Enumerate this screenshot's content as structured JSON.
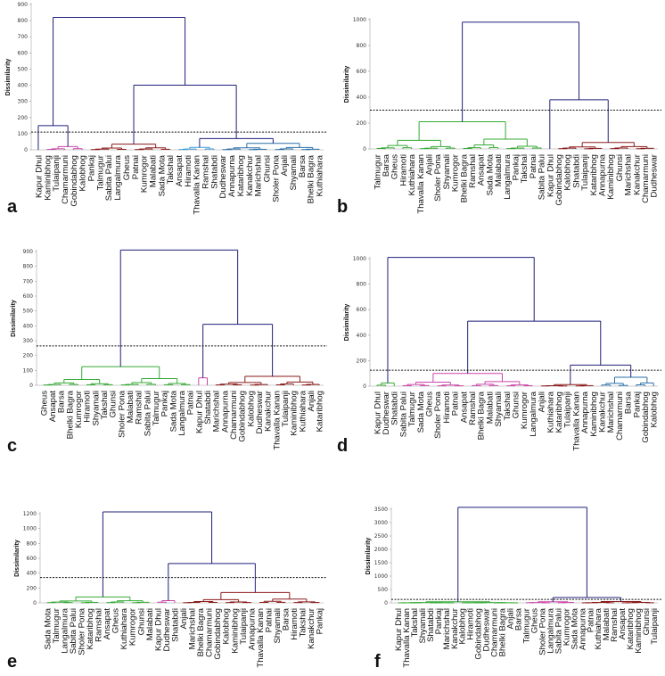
{
  "chart_data": [
    {
      "type": "dendrogram",
      "panel": "a",
      "ylabel": "Dissimilarity",
      "ylim": [
        0,
        900
      ],
      "yticks": [
        0,
        100,
        200,
        300,
        400,
        500,
        600,
        700,
        800,
        900
      ],
      "threshold": 110,
      "leaves": [
        "Kapur Dhul",
        "Kaminibhog",
        "Tulaipanji",
        "Chamarmuni",
        "Gobindabhog",
        "Kalobhog",
        "Pankaj",
        "Talmugur",
        "Sabita Palui",
        "Langalmura",
        "Gheus",
        "Patnai",
        "Kumrogor",
        "Malabati",
        "Sada Mota",
        "Takshal",
        "Ansapat",
        "Hiramoti",
        "Thavalla Kanan",
        "Ramshal",
        "Shatabdi",
        "Dudheswar",
        "Annapurna",
        "Kataribhog",
        "Kanakchur",
        "Marichshal",
        "Ghunsi",
        "Sholer Pona",
        "Anjali",
        "Shyamali",
        "Barsa",
        "Bhelki Bagra",
        "Kuthiahara"
      ],
      "clusters": [
        {
          "start": 0,
          "end": 0,
          "color": "#1f1f7a",
          "height": 0
        },
        {
          "start": 1,
          "end": 5,
          "color": "#cc44aa",
          "height": 20
        },
        {
          "start": 6,
          "end": 15,
          "color": "#8b1a1a",
          "height": 35
        },
        {
          "start": 16,
          "end": 20,
          "color": "#3a9ad9",
          "height": 15
        },
        {
          "start": 21,
          "end": 32,
          "color": "#2a6fa8",
          "height": 40
        }
      ],
      "merges": [
        [
          0,
          1,
          150
        ],
        [
          3,
          4,
          70
        ],
        [
          2,
          6,
          400
        ],
        [
          5,
          7,
          820
        ]
      ],
      "merge_color": "#1f1f7a"
    },
    {
      "type": "dendrogram",
      "panel": "b",
      "ylabel": "Dissimilarity",
      "ylim": [
        0,
        1000
      ],
      "yticks": [
        0,
        200,
        400,
        600,
        800,
        1000
      ],
      "threshold": 300,
      "leaves": [
        "Talmugur",
        "Barsa",
        "Gheus",
        "Hiramoti",
        "Kuthiahara",
        "Thavalla Kanan",
        "Anjali",
        "Sholer Pona",
        "Shyamali",
        "Kumrogor",
        "Bhelki Bagra",
        "Ramshal",
        "Ansapat",
        "Sada Mota",
        "Malabati",
        "Langalmura",
        "Pankaj",
        "Takshal",
        "Patnai",
        "Sabita Palui",
        "Kapur Dhul",
        "Gobindabhog",
        "Kalobhog",
        "Shatabdi",
        "Tulaipanji",
        "Kataribhog",
        "Annapurna",
        "Kaminibhog",
        "Ghunsi",
        "Marichshal",
        "Kanakchur",
        "Chamarmuni",
        "Dudheswar"
      ],
      "clusters": [
        {
          "start": 0,
          "end": 19,
          "color": "#33aa33",
          "height": 210
        },
        {
          "start": 20,
          "end": 20,
          "color": "#1f1f7a",
          "height": 0
        },
        {
          "start": 21,
          "end": 32,
          "color": "#8b1a1a",
          "height": 50
        }
      ],
      "merges": [
        [
          1,
          2,
          380
        ],
        [
          0,
          3,
          980
        ]
      ],
      "merge_color": "#1f1f7a"
    },
    {
      "type": "dendrogram",
      "panel": "c",
      "ylabel": "Dissimilarity",
      "ylim": [
        0,
        900
      ],
      "yticks": [
        0,
        100,
        200,
        300,
        400,
        500,
        600,
        700,
        800,
        900
      ],
      "threshold": 265,
      "leaves": [
        "Gheus",
        "Ansapat",
        "Barsa",
        "Bhelki Bagra",
        "Kumrogor",
        "Hiramoti",
        "Shyamali",
        "Takshal",
        "Ghunsi",
        "Sholer Pona",
        "Malabati",
        "Ramshal",
        "Sabita Palui",
        "Talmugur",
        "Pankaj",
        "Sada Mota",
        "Langalmura",
        "Patnai",
        "Kapur Dhul",
        "Shatabdi",
        "Marichshal",
        "Annapurna",
        "Chamarmuni",
        "Gobindabhog",
        "Kalobhog",
        "Dudheswar",
        "Kanakchur",
        "Thavalla Kanan",
        "Tulaipanji",
        "Kaminibhog",
        "Kuthiahara",
        "Anjali",
        "Kataribhog"
      ],
      "clusters": [
        {
          "start": 0,
          "end": 17,
          "color": "#33aa33",
          "height": 125
        },
        {
          "start": 18,
          "end": 19,
          "color": "#cc44aa",
          "height": 50
        },
        {
          "start": 20,
          "end": 32,
          "color": "#8b1a1a",
          "height": 60
        }
      ],
      "merges": [
        [
          1,
          2,
          410
        ],
        [
          0,
          3,
          910
        ]
      ],
      "merge_color": "#1f1f7a"
    },
    {
      "type": "dendrogram",
      "panel": "d",
      "ylabel": "Dissimilarity",
      "ylim": [
        0,
        1000
      ],
      "yticks": [
        0,
        200,
        400,
        600,
        800,
        1000
      ],
      "threshold": 125,
      "leaves": [
        "Kapur Dhul",
        "Dudheswar",
        "Shatabdi",
        "Sabita Palui",
        "Talmugur",
        "Sada Mota",
        "Gheus",
        "Sholer Pona",
        "Hiramoti",
        "Patnai",
        "Ansapat",
        "Ramshal",
        "Bhelki Bagra",
        "Malabati",
        "Shyamali",
        "Takshal",
        "Ghunsi",
        "Kumrogor",
        "Langalmura",
        "Anjali",
        "Kuthiahara",
        "Kataribhog",
        "Tulaipanji",
        "Thavalla Kanan",
        "Annapurna",
        "Kaminibhog",
        "Kanakchur",
        "Marichshal",
        "Chamarmuni",
        "Barsa",
        "Pankaj",
        "Gobindabhog",
        "Kalobhog"
      ],
      "clusters": [
        {
          "start": 0,
          "end": 2,
          "color": "#33aa33",
          "height": 25
        },
        {
          "start": 3,
          "end": 18,
          "color": "#cc44aa",
          "height": 100
        },
        {
          "start": 19,
          "end": 25,
          "color": "#8b1a1a",
          "height": 12
        },
        {
          "start": 26,
          "end": 32,
          "color": "#2a6fa8",
          "height": 70
        }
      ],
      "merges": [
        [
          2,
          3,
          165
        ],
        [
          1,
          4,
          510
        ],
        [
          0,
          5,
          1010
        ]
      ],
      "merge_color": "#1f1f7a"
    },
    {
      "type": "dendrogram",
      "panel": "e",
      "ylabel": "Dissimilarity",
      "ylim": [
        0,
        1200
      ],
      "yticks": [
        0,
        200,
        400,
        600,
        800,
        1000,
        1200
      ],
      "threshold": 340,
      "leaves": [
        "Sada Mota",
        "Talmugur",
        "Langalmura",
        "Sabita Palui",
        "Sholer Pona",
        "Kataribhog",
        "Ramshal",
        "Ansapat",
        "Gheus",
        "Kuthiahara",
        "Kumrogor",
        "Ghunsi",
        "Malabati",
        "Kapur Dhul",
        "Dudheswar",
        "Shatabdi",
        "Anjali",
        "Marichshal",
        "Bhelki Bagra",
        "Chamarmuni",
        "Gobindabhog",
        "Kalobhog",
        "Kaminibhog",
        "Tulaipanji",
        "Annapurna",
        "Thavalla Kanan",
        "Patnai",
        "Shyamali",
        "Barsa",
        "Hiramoti",
        "Takshal",
        "Kanakchur",
        "Pankaj"
      ],
      "clusters": [
        {
          "start": 0,
          "end": 12,
          "color": "#33aa33",
          "height": 80
        },
        {
          "start": 13,
          "end": 15,
          "color": "#cc44aa",
          "height": 30
        },
        {
          "start": 16,
          "end": 32,
          "color": "#8b1a1a",
          "height": 140
        }
      ],
      "merges": [
        [
          1,
          2,
          530
        ],
        [
          0,
          3,
          1280
        ]
      ],
      "merge_color": "#1f1f7a"
    },
    {
      "type": "dendrogram",
      "panel": "f",
      "ylabel": "Dissimilarity",
      "ylim": [
        0,
        3500
      ],
      "yticks": [
        0,
        500,
        1000,
        1500,
        2000,
        2500,
        3000,
        3500
      ],
      "threshold": 130,
      "leaves": [
        "Kapur Dhul",
        "Thavalla Kanan",
        "Takshal",
        "Shyamali",
        "Shatabdi",
        "Pankaj",
        "Marichshal",
        "Kanakchur",
        "Kalobhog",
        "Hiramoti",
        "Gobindabhog",
        "Dudheswar",
        "Chamarmuni",
        "Bhelki Bagra",
        "Anjali",
        "Barsa",
        "Talmugur",
        "Gheus",
        "Sholer Pona",
        "Langalmura",
        "Sabita Palui",
        "Kumrogor",
        "Sada Mota",
        "Annapurna",
        "Patnai",
        "Kuthiahara",
        "Malabati",
        "Ramshal",
        "Ansapat",
        "Kataribhog",
        "Kaminibhog",
        "Ghunsi",
        "Tulaipanji"
      ],
      "clusters": [
        {
          "start": 0,
          "end": 15,
          "color": "#33aa33",
          "height": 40
        },
        {
          "start": 16,
          "end": 22,
          "color": "#cc44aa",
          "height": 40
        },
        {
          "start": 23,
          "end": 32,
          "color": "#8b1a1a",
          "height": 50
        }
      ],
      "merges": [
        [
          1,
          2,
          200
        ],
        [
          0,
          3,
          3600
        ]
      ],
      "merge_color": "#1f1f7a"
    }
  ]
}
